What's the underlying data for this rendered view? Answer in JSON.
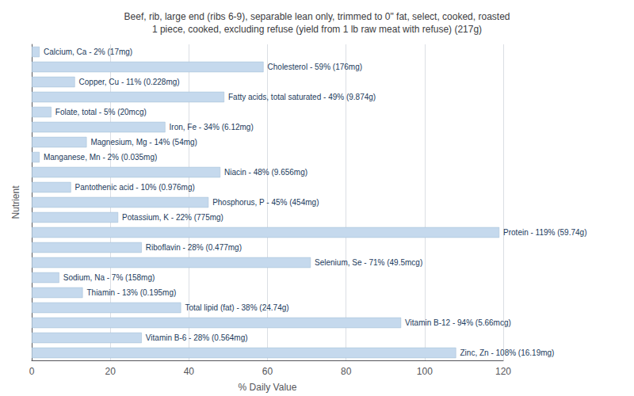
{
  "chart_data": {
    "type": "bar",
    "orientation": "horizontal",
    "title": "Beef, rib, large end (ribs 6-9), separable lean only, trimmed to 0\" fat, select, cooked, roasted\n1 piece, cooked, excluding refuse (yield from 1 lb raw meat with refuse) (217g)",
    "xlabel": "% Daily Value",
    "ylabel": "Nutrient",
    "values": [
      2,
      59,
      11,
      49,
      5,
      34,
      14,
      2,
      48,
      10,
      45,
      22,
      119,
      28,
      71,
      7,
      13,
      38,
      94,
      28,
      108
    ],
    "value_labels": [
      "Calcium, Ca - 2% (17mg)",
      "Cholesterol - 59% (176mg)",
      "Copper, Cu - 11% (0.228mg)",
      "Fatty acids, total saturated - 49% (9.874g)",
      "Folate, total - 5% (20mcg)",
      "Iron, Fe - 34% (6.12mg)",
      "Magnesium, Mg - 14% (54mg)",
      "Manganese, Mn - 2% (0.035mg)",
      "Niacin - 48% (9.656mg)",
      "Pantothenic acid - 10% (0.976mg)",
      "Phosphorus, P - 45% (454mg)",
      "Potassium, K - 22% (775mg)",
      "Protein - 119% (59.74g)",
      "Riboflavin - 28% (0.477mg)",
      "Selenium, Se - 71% (49.5mcg)",
      "Sodium, Na - 7% (158mg)",
      "Thiamin - 13% (0.195mg)",
      "Total lipid (fat) - 38% (24.74g)",
      "Vitamin B-12 - 94% (5.66mcg)",
      "Vitamin B-6 - 28% (0.564mg)",
      "Zinc, Zn - 108% (16.19mg)"
    ],
    "data_labels": true,
    "color": "#c5d9ed",
    "xlim": [
      0,
      120
    ],
    "xticks": [
      0,
      20,
      40,
      60,
      80,
      100,
      120
    ],
    "grid": true,
    "tick_labels": "x"
  }
}
